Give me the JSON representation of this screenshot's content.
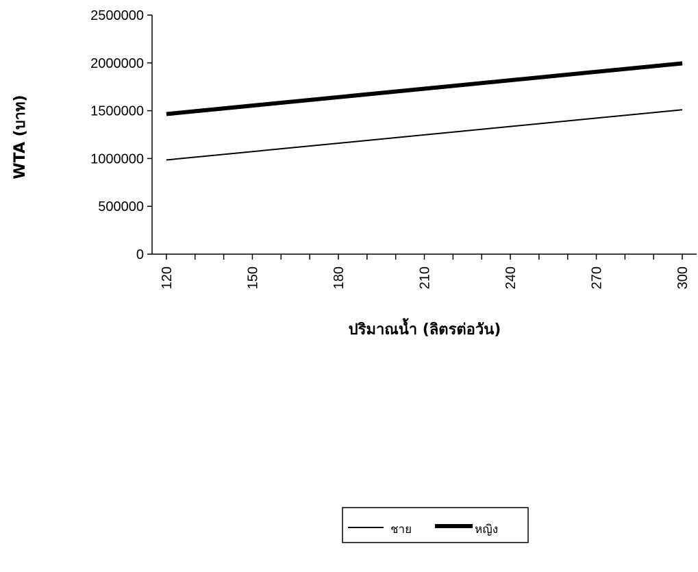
{
  "chart_data": {
    "type": "line",
    "xlabel": "ปริมาณน้ำ (ลิตรต่อวัน)",
    "ylabel": "WTA (บาท)",
    "x": [
      120,
      300
    ],
    "xlim": [
      115,
      305
    ],
    "ylim": [
      0,
      2500000
    ],
    "x_tick_labels": [
      "120",
      "150",
      "180",
      "210",
      "240",
      "270",
      "300"
    ],
    "x_tick_values": [
      120,
      150,
      180,
      210,
      240,
      270,
      300
    ],
    "y_tick_labels": [
      "0",
      "500000",
      "1000000",
      "1500000",
      "2000000",
      "2500000"
    ],
    "y_tick_values": [
      0,
      500000,
      1000000,
      1500000,
      2000000,
      2500000
    ],
    "series": [
      {
        "name": "ชาย",
        "values": [
          985000,
          1510000
        ],
        "color": "#000000",
        "style": "thin"
      },
      {
        "name": "หญิง",
        "values": [
          1465000,
          1995000
        ],
        "color": "#000000",
        "style": "thick"
      }
    ],
    "grid": false,
    "legend_position": "bottom"
  }
}
